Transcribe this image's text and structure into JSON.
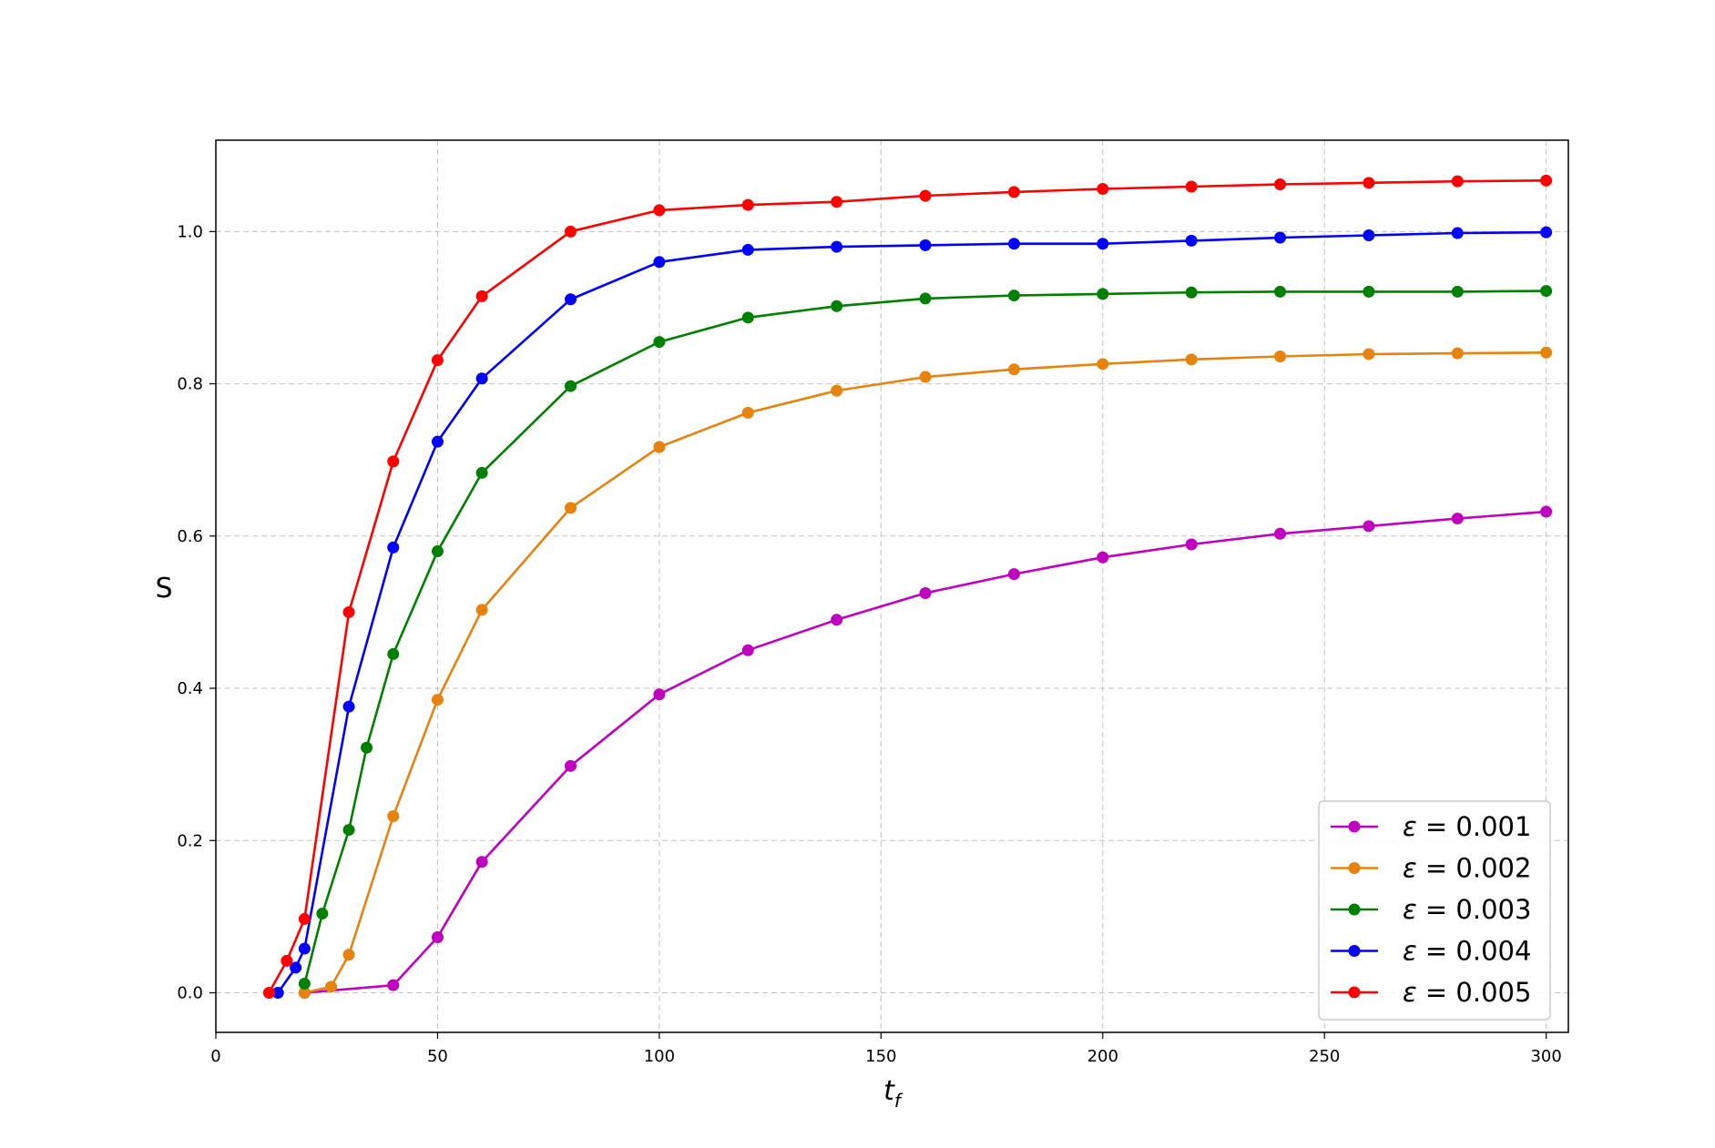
{
  "chart_data": {
    "type": "line",
    "xlabel_base": "t",
    "xlabel_sub": "f",
    "ylabel": "S",
    "xlim": [
      0,
      305
    ],
    "ylim": [
      -0.052,
      1.12
    ],
    "xticks": [
      0,
      50,
      100,
      150,
      200,
      250,
      300
    ],
    "yticks": [
      0.0,
      0.2,
      0.4,
      0.6,
      0.8,
      1.0
    ],
    "grid": true,
    "legend_position": "lower-right",
    "legend_symbol": "ε",
    "series": [
      {
        "name": "0.001",
        "color": "#bf00bf",
        "x": [
          20,
          40,
          50,
          60,
          80,
          100,
          120,
          140,
          160,
          180,
          200,
          220,
          240,
          260,
          280,
          300
        ],
        "y": [
          0.0,
          0.01,
          0.073,
          0.172,
          0.298,
          0.392,
          0.45,
          0.49,
          0.525,
          0.55,
          0.572,
          0.589,
          0.603,
          0.613,
          0.623,
          0.632
        ]
      },
      {
        "name": "0.002",
        "color": "#e6820e",
        "x": [
          20,
          26,
          30,
          40,
          50,
          60,
          80,
          100,
          120,
          140,
          160,
          180,
          200,
          220,
          240,
          260,
          280,
          300
        ],
        "y": [
          0.0,
          0.008,
          0.05,
          0.232,
          0.385,
          0.503,
          0.637,
          0.717,
          0.762,
          0.791,
          0.809,
          0.819,
          0.826,
          0.832,
          0.836,
          0.839,
          0.84,
          0.841
        ]
      },
      {
        "name": "0.003",
        "color": "#008000",
        "x": [
          20,
          24,
          30,
          34,
          40,
          50,
          60,
          80,
          100,
          120,
          140,
          160,
          180,
          200,
          220,
          240,
          260,
          280,
          300
        ],
        "y": [
          0.012,
          0.104,
          0.214,
          0.322,
          0.445,
          0.58,
          0.683,
          0.797,
          0.855,
          0.887,
          0.902,
          0.912,
          0.916,
          0.918,
          0.92,
          0.921,
          0.921,
          0.921,
          0.922
        ]
      },
      {
        "name": "0.004",
        "color": "#0000ff",
        "x": [
          14,
          18,
          20,
          30,
          40,
          50,
          60,
          80,
          100,
          120,
          140,
          160,
          180,
          200,
          220,
          240,
          260,
          280,
          300
        ],
        "y": [
          0.0,
          0.033,
          0.058,
          0.376,
          0.585,
          0.724,
          0.807,
          0.911,
          0.96,
          0.976,
          0.98,
          0.982,
          0.984,
          0.984,
          0.988,
          0.992,
          0.995,
          0.998,
          0.999
        ]
      },
      {
        "name": "0.005",
        "color": "#ff0000",
        "x": [
          12,
          16,
          20,
          30,
          40,
          50,
          60,
          80,
          100,
          120,
          140,
          160,
          180,
          200,
          220,
          240,
          260,
          280,
          300
        ],
        "y": [
          0.0,
          0.042,
          0.097,
          0.5,
          0.698,
          0.831,
          0.915,
          1.0,
          1.028,
          1.035,
          1.039,
          1.047,
          1.052,
          1.056,
          1.059,
          1.062,
          1.064,
          1.066,
          1.067
        ]
      }
    ]
  }
}
